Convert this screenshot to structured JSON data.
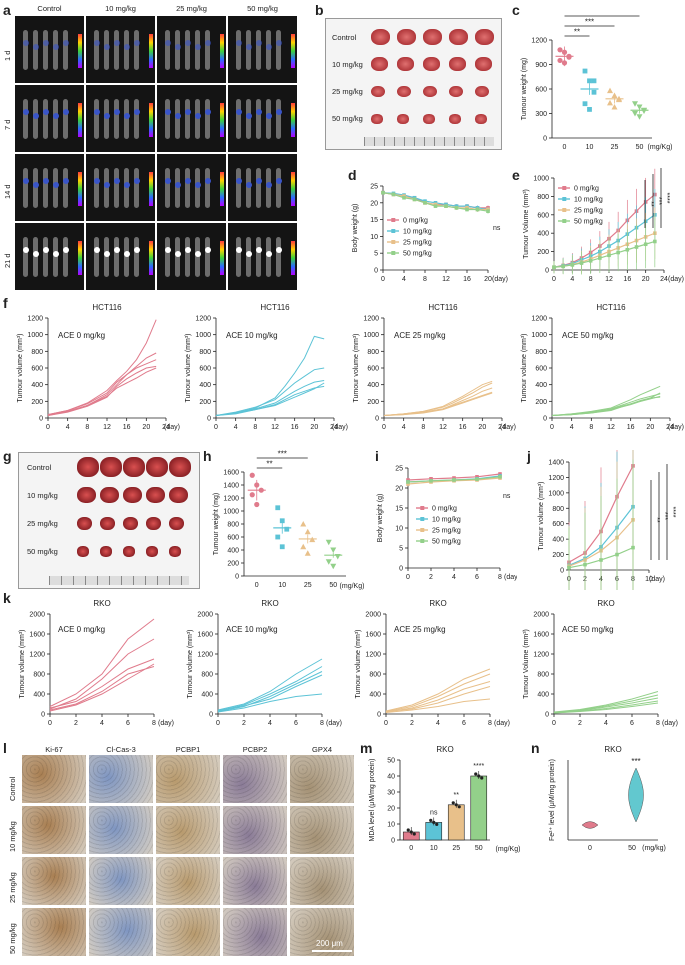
{
  "panel_labels": [
    "a",
    "b",
    "c",
    "d",
    "e",
    "f",
    "g",
    "h",
    "i",
    "j",
    "k",
    "l",
    "m",
    "n"
  ],
  "panel_a": {
    "columns": [
      "Control",
      "10 mg/kg",
      "25 mg/kg",
      "50 mg/kg"
    ],
    "rows": [
      "1 d",
      "7 d",
      "14 d",
      "21 d"
    ]
  },
  "panel_b": {
    "rows": [
      "Control",
      "10 mg/kg",
      "25 mg/kg",
      "50 mg/kg"
    ]
  },
  "panel_g": {
    "rows": [
      "Control",
      "10 mg/kg",
      "25 mg/kg",
      "50 mg/kg"
    ]
  },
  "panel_l": {
    "columns": [
      "Ki-67",
      "Cl-Cas-3",
      "PCBP1",
      "PCBP2",
      "GPX4"
    ],
    "rows": [
      "Control",
      "10 mg/kg",
      "25 mg/kg",
      "50 mg/kg"
    ],
    "scale_bar": "200 μm"
  },
  "colors": {
    "s0": "#e07b8c",
    "s10": "#5cc3d6",
    "s25": "#e8c08a",
    "s50": "#93d08a"
  },
  "chart_data": [
    {
      "id": "c",
      "type": "scatter",
      "ylabel": "Tumour weight (mg)",
      "xlabel": "(mg/Kg)",
      "categories": [
        "0",
        "10",
        "25",
        "50"
      ],
      "yticks": [
        "0",
        "300",
        "600",
        "900",
        "1200"
      ],
      "ylim": [
        0,
        1200
      ],
      "means": [
        1000,
        600,
        480,
        340
      ],
      "points": [
        [
          1080,
          1050,
          1000,
          950,
          920,
          990
        ],
        [
          820,
          700,
          560,
          420,
          350,
          700
        ],
        [
          580,
          520,
          470,
          430,
          380,
          480
        ],
        [
          420,
          380,
          340,
          300,
          260,
          330
        ]
      ],
      "sig": [
        "**",
        "***",
        "****"
      ]
    },
    {
      "id": "d",
      "type": "line",
      "ylabel": "Body weight (g)",
      "xlabel": "(day)",
      "xticks": [
        "0",
        "4",
        "8",
        "12",
        "16",
        "20"
      ],
      "yticks": [
        "0",
        "5",
        "10",
        "15",
        "20",
        "25"
      ],
      "ylim": [
        0,
        25
      ],
      "legend": [
        "0   mg/kg",
        "10 mg/kg",
        "25 mg/kg",
        "50 mg/kg"
      ],
      "annotation": "ns",
      "x": [
        0,
        2,
        4,
        6,
        8,
        10,
        12,
        14,
        16,
        18,
        20
      ],
      "series": [
        [
          23,
          22.5,
          22,
          21.5,
          20,
          19.5,
          19.5,
          19,
          19,
          18.5,
          18.5
        ],
        [
          23,
          22.8,
          22.3,
          21.5,
          20.5,
          20,
          19.5,
          19,
          19,
          18.5,
          18
        ],
        [
          23,
          22.5,
          22,
          21,
          20,
          19.5,
          19,
          18.5,
          18.5,
          18,
          18
        ],
        [
          23,
          22.5,
          21.5,
          21,
          20,
          19,
          19,
          18.5,
          18,
          18,
          17.5
        ]
      ]
    },
    {
      "id": "e",
      "type": "line",
      "ylabel": "Tumour Volume (mm³)",
      "xlabel": "(day)",
      "xticks": [
        "0",
        "4",
        "8",
        "12",
        "16",
        "20",
        "24"
      ],
      "yticks": [
        "0",
        "200",
        "400",
        "600",
        "800",
        "1000"
      ],
      "ylim": [
        0,
        1000
      ],
      "legend": [
        "0   mg/kg",
        "10 mg/kg",
        "25 mg/kg",
        "50 mg/kg"
      ],
      "sig": [
        "**",
        "***",
        "****"
      ],
      "x": [
        0,
        2,
        4,
        6,
        8,
        10,
        12,
        14,
        16,
        18,
        20,
        22
      ],
      "series": [
        [
          30,
          50,
          80,
          130,
          190,
          260,
          340,
          430,
          540,
          640,
          740,
          820
        ],
        [
          30,
          45,
          70,
          110,
          150,
          200,
          260,
          320,
          390,
          460,
          530,
          600
        ],
        [
          30,
          40,
          60,
          85,
          120,
          160,
          200,
          240,
          280,
          320,
          360,
          400
        ],
        [
          30,
          40,
          55,
          75,
          100,
          130,
          160,
          190,
          220,
          250,
          280,
          310
        ]
      ]
    },
    {
      "id": "f1",
      "type": "line",
      "title": "HCT116",
      "annotation": "ACE 0 mg/kg",
      "ylabel": "Tumour volume (mm³)",
      "xlabel": "(day)",
      "xticks": [
        "0",
        "4",
        "8",
        "12",
        "16",
        "20",
        "24"
      ],
      "yticks": [
        "0",
        "200",
        "400",
        "600",
        "800",
        "1000",
        "1200"
      ],
      "ylim": [
        0,
        1200
      ],
      "color": "s0",
      "x": [
        0,
        4,
        8,
        12,
        14,
        16,
        18,
        20,
        22
      ],
      "series": [
        [
          40,
          90,
          180,
          330,
          450,
          560,
          700,
          900,
          1180
        ],
        [
          30,
          80,
          150,
          280,
          400,
          520,
          620,
          720,
          780
        ],
        [
          40,
          90,
          170,
          300,
          430,
          520,
          600,
          650,
          700
        ],
        [
          30,
          70,
          140,
          250,
          380,
          470,
          540,
          600,
          620
        ],
        [
          40,
          80,
          150,
          260,
          360,
          420,
          480,
          550,
          600
        ]
      ]
    },
    {
      "id": "f2",
      "type": "line",
      "title": "HCT116",
      "annotation": "ACE 10 mg/kg",
      "ylabel": "Tumour volume (mm³)",
      "xlabel": "(day)",
      "xticks": [
        "0",
        "4",
        "8",
        "12",
        "16",
        "20",
        "24"
      ],
      "yticks": [
        "0",
        "200",
        "400",
        "600",
        "800",
        "1000",
        "1200"
      ],
      "ylim": [
        0,
        1200
      ],
      "color": "s10",
      "x": [
        0,
        4,
        8,
        12,
        14,
        16,
        18,
        20,
        22
      ],
      "series": [
        [
          30,
          60,
          120,
          240,
          380,
          540,
          720,
          980,
          950
        ],
        [
          30,
          70,
          130,
          220,
          320,
          420,
          500,
          580,
          600
        ],
        [
          30,
          60,
          110,
          180,
          250,
          320,
          380,
          430,
          450
        ],
        [
          30,
          50,
          100,
          160,
          220,
          280,
          320,
          360,
          380
        ],
        [
          30,
          60,
          100,
          150,
          200,
          250,
          300,
          350,
          420
        ]
      ]
    },
    {
      "id": "f3",
      "type": "line",
      "title": "HCT116",
      "annotation": "ACE 25 mg/kg",
      "ylabel": "Tumour volume (mm³)",
      "xlabel": "(day)",
      "xticks": [
        "0",
        "4",
        "8",
        "12",
        "16",
        "20",
        "24"
      ],
      "yticks": [
        "0",
        "200",
        "400",
        "600",
        "800",
        "1000",
        "1200"
      ],
      "ylim": [
        0,
        1200
      ],
      "color": "s25",
      "x": [
        0,
        4,
        8,
        12,
        14,
        16,
        18,
        20,
        22
      ],
      "series": [
        [
          30,
          50,
          80,
          140,
          200,
          260,
          330,
          400,
          440
        ],
        [
          30,
          50,
          80,
          130,
          180,
          240,
          300,
          370,
          420
        ],
        [
          30,
          40,
          70,
          110,
          160,
          210,
          260,
          320,
          360
        ],
        [
          30,
          40,
          60,
          100,
          140,
          180,
          220,
          260,
          300
        ],
        [
          30,
          50,
          70,
          110,
          150,
          190,
          230,
          270,
          310
        ]
      ]
    },
    {
      "id": "f4",
      "type": "line",
      "title": "HCT116",
      "annotation": "ACE 50 mg/kg",
      "ylabel": "Tumour volume (mm³)",
      "xlabel": "(day)",
      "xticks": [
        "0",
        "4",
        "8",
        "12",
        "16",
        "20",
        "24"
      ],
      "yticks": [
        "0",
        "200",
        "400",
        "600",
        "800",
        "1000",
        "1200"
      ],
      "ylim": [
        0,
        1200
      ],
      "color": "s50",
      "x": [
        0,
        4,
        8,
        12,
        14,
        16,
        18,
        20,
        22
      ],
      "series": [
        [
          30,
          50,
          80,
          120,
          170,
          220,
          280,
          330,
          380
        ],
        [
          30,
          40,
          70,
          110,
          150,
          190,
          230,
          260,
          290
        ],
        [
          30,
          40,
          60,
          90,
          130,
          170,
          210,
          240,
          250
        ],
        [
          30,
          50,
          70,
          100,
          140,
          170,
          200,
          230,
          260
        ],
        [
          30,
          40,
          60,
          100,
          130,
          160,
          200,
          240,
          300
        ]
      ]
    },
    {
      "id": "h",
      "type": "scatter",
      "ylabel": "Tumour weight (mg)",
      "xlabel": "(mg/Kg)",
      "categories": [
        "0",
        "10",
        "25",
        "50"
      ],
      "yticks": [
        "0",
        "200",
        "400",
        "600",
        "800",
        "1000",
        "1200",
        "1400",
        "1600"
      ],
      "ylim": [
        0,
        1600
      ],
      "means": [
        1320,
        740,
        570,
        320
      ],
      "points": [
        [
          1550,
          1400,
          1320,
          1250,
          1100
        ],
        [
          1050,
          850,
          720,
          600,
          450
        ],
        [
          800,
          680,
          560,
          450,
          350
        ],
        [
          520,
          400,
          300,
          220,
          150
        ]
      ],
      "sig": [
        "**",
        "***",
        "****"
      ]
    },
    {
      "id": "i",
      "type": "line",
      "ylabel": "Body weight (g)",
      "xlabel": "(day)",
      "xticks": [
        "0",
        "2",
        "4",
        "6",
        "8"
      ],
      "yticks": [
        "0",
        "5",
        "10",
        "15",
        "20",
        "25"
      ],
      "ylim": [
        0,
        25
      ],
      "legend": [
        "0   mg/kg",
        "10 mg/kg",
        "25 mg/kg",
        "50 mg/kg"
      ],
      "annotation": "ns",
      "x": [
        0,
        2,
        4,
        6,
        8
      ],
      "series": [
        [
          22,
          22.3,
          22.5,
          22.8,
          23.5
        ],
        [
          21.5,
          21.8,
          22,
          22.3,
          23
        ],
        [
          21,
          21.5,
          21.8,
          22,
          22.5
        ],
        [
          21.5,
          21.8,
          22,
          22.2,
          22.8
        ]
      ]
    },
    {
      "id": "j",
      "type": "line",
      "ylabel": "Tumour volume (mm³)",
      "xlabel": "(day)",
      "xticks": [
        "0",
        "2",
        "4",
        "6",
        "8",
        "10"
      ],
      "yticks": [
        "0",
        "200",
        "400",
        "600",
        "800",
        "1000",
        "1200",
        "1400"
      ],
      "ylim": [
        0,
        1400
      ],
      "sig": [
        "**",
        "***",
        "****"
      ],
      "x": [
        0,
        2,
        4,
        6,
        8
      ],
      "series": [
        [
          100,
          220,
          500,
          950,
          1350
        ],
        [
          60,
          150,
          300,
          550,
          820
        ],
        [
          50,
          130,
          250,
          420,
          650
        ],
        [
          30,
          70,
          130,
          200,
          290
        ]
      ]
    },
    {
      "id": "k1",
      "type": "line",
      "title": "RKO",
      "annotation": "ACE 0 mg/kg",
      "ylabel": "Tumour volume (mm³)",
      "xlabel": "(day)",
      "xticks": [
        "0",
        "2",
        "4",
        "6",
        "8"
      ],
      "yticks": [
        "0",
        "400",
        "800",
        "1200",
        "1600",
        "2000"
      ],
      "ylim": [
        0,
        2000
      ],
      "color": "s0",
      "x": [
        0,
        2,
        4,
        6,
        8
      ],
      "series": [
        [
          150,
          400,
          800,
          1500,
          1900
        ],
        [
          100,
          300,
          700,
          1200,
          1500
        ],
        [
          120,
          250,
          550,
          900,
          1100
        ],
        [
          80,
          200,
          450,
          800,
          950
        ],
        [
          60,
          180,
          400,
          700,
          1000
        ]
      ]
    },
    {
      "id": "k2",
      "type": "line",
      "title": "RKO",
      "annotation": "ACE 10 mg/kg",
      "ylabel": "Tumour volume (mm³)",
      "xlabel": "(day)",
      "xticks": [
        "0",
        "2",
        "4",
        "6",
        "8"
      ],
      "yticks": [
        "0",
        "400",
        "800",
        "1200",
        "1600",
        "2000"
      ],
      "ylim": [
        0,
        2000
      ],
      "color": "s10",
      "x": [
        0,
        2,
        4,
        6,
        8
      ],
      "series": [
        [
          80,
          200,
          450,
          800,
          1100
        ],
        [
          60,
          180,
          400,
          650,
          950
        ],
        [
          50,
          150,
          350,
          600,
          850
        ],
        [
          70,
          160,
          300,
          550,
          780
        ],
        [
          40,
          120,
          250,
          350,
          400
        ]
      ]
    },
    {
      "id": "k3",
      "type": "line",
      "title": "RKO",
      "annotation": "ACE 25 mg/kg",
      "ylabel": "Tumour volume (mm³)",
      "xlabel": "(day)",
      "xticks": [
        "0",
        "2",
        "4",
        "6",
        "8"
      ],
      "yticks": [
        "0",
        "400",
        "800",
        "1200",
        "1600",
        "2000"
      ],
      "ylim": [
        0,
        2000
      ],
      "color": "s25",
      "x": [
        0,
        2,
        4,
        6,
        8
      ],
      "series": [
        [
          60,
          180,
          400,
          700,
          900
        ],
        [
          50,
          150,
          350,
          600,
          800
        ],
        [
          40,
          120,
          280,
          500,
          650
        ],
        [
          50,
          100,
          220,
          400,
          550
        ],
        [
          30,
          80,
          150,
          250,
          300
        ]
      ]
    },
    {
      "id": "k4",
      "type": "line",
      "title": "RKO",
      "annotation": "ACE 50 mg/kg",
      "ylabel": "Tumour Volume (mm³)",
      "xlabel": "(day)",
      "xticks": [
        "0",
        "2",
        "4",
        "6",
        "8"
      ],
      "yticks": [
        "0",
        "400",
        "800",
        "1200",
        "1600",
        "2000"
      ],
      "ylim": [
        0,
        2000
      ],
      "color": "s50",
      "x": [
        0,
        2,
        4,
        6,
        8
      ],
      "series": [
        [
          40,
          90,
          180,
          300,
          450
        ],
        [
          30,
          80,
          160,
          260,
          380
        ],
        [
          30,
          70,
          140,
          220,
          320
        ],
        [
          20,
          60,
          110,
          180,
          260
        ],
        [
          20,
          50,
          90,
          150,
          220
        ]
      ]
    },
    {
      "id": "m",
      "type": "bar",
      "title": "RKO",
      "ylabel": "MDA level (μM/mg protein)",
      "xlabel": "(mg/Kg)",
      "categories": [
        "0",
        "10",
        "25",
        "50"
      ],
      "yticks": [
        "0",
        "10",
        "20",
        "30",
        "40",
        "50"
      ],
      "ylim": [
        0,
        50
      ],
      "values": [
        5,
        11,
        22,
        40
      ],
      "sig": [
        "",
        "ns",
        "**",
        "****"
      ]
    },
    {
      "id": "n",
      "type": "violin",
      "title": "RKO",
      "ylabel": "Fe²⁺ level (μM/mg protein)",
      "xlabel": "(mg/kg)",
      "categories": [
        "0",
        "50"
      ],
      "annotation": "***"
    }
  ]
}
